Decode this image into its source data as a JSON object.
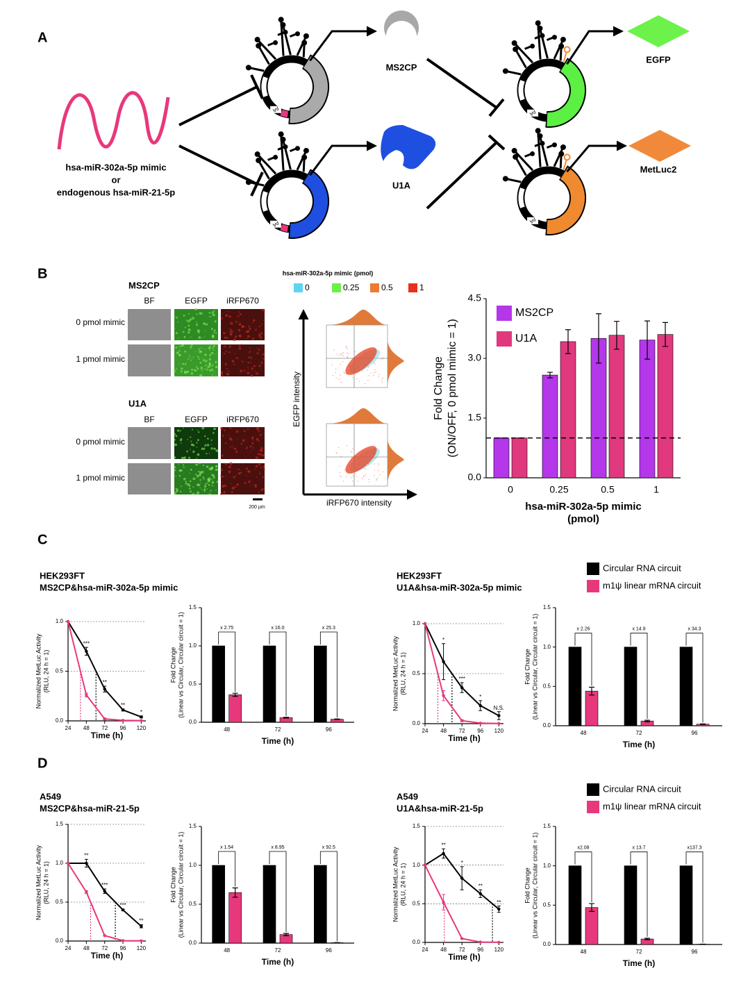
{
  "panel_labels": [
    "A",
    "B",
    "C",
    "D"
  ],
  "diagram": {
    "mirna_label": [
      "hsa-miR-302a-5p mimic",
      "or",
      "endogenous hsa-miR-21-5p"
    ],
    "proteins": [
      "MS2CP",
      "U1A",
      "EGFP",
      "MetLuc2"
    ],
    "pa_label": "pA"
  },
  "microscopy": {
    "groups": [
      "MS2CP",
      "U1A"
    ],
    "channels": [
      "BF",
      "EGFP",
      "iRFP670"
    ],
    "rows": [
      "0 pmol mimic",
      "1 pmol mimic"
    ],
    "scale_bar": "200 µm"
  },
  "flow": {
    "legend_title": "hsa-miR-302a-5p mimic (pmol)",
    "legend": [
      {
        "name": "0",
        "color": "#5fd4f2"
      },
      {
        "name": "0.25",
        "color": "#6cf04a"
      },
      {
        "name": "0.5",
        "color": "#ef7a32"
      },
      {
        "name": "1",
        "color": "#e8301f"
      }
    ],
    "x_label": "iRFP670 intensity",
    "y_label": "EGFP intensity"
  },
  "chart_data": [
    {
      "type": "bar",
      "categories": [
        "0",
        "0.25",
        "0.5",
        "1"
      ],
      "series": [
        {
          "name": "MS2CP",
          "color": "#b437ea",
          "values": [
            1,
            2.58,
            3.5,
            3.46
          ],
          "errors": [
            0,
            0.07,
            0.62,
            0.48
          ]
        },
        {
          "name": "U1A",
          "color": "#e0397d",
          "values": [
            1,
            3.42,
            3.58,
            3.6
          ],
          "errors": [
            0,
            0.3,
            0.35,
            0.3
          ]
        }
      ],
      "ylim": [
        0,
        4.5
      ],
      "yticks": [
        {
          "value": 0,
          "label": "0.0"
        },
        {
          "value": 1.5,
          "label": "1.5"
        },
        {
          "value": 3,
          "label": "3.0"
        },
        {
          "value": 4.5,
          "label": "4.5"
        }
      ],
      "y_label": [
        "Fold Change",
        "(ON/OFF, 0 pmol mimic = 1)"
      ],
      "x_label": [
        "hsa-miR-302a-5p mimic",
        "(pmol)"
      ],
      "reference_line": 1,
      "legend": "upper left"
    },
    {
      "type": "line",
      "title": [
        "HEK293FT",
        "MS2CP&hsa-miR-302a-5p mimic"
      ],
      "x": [
        24,
        48,
        72,
        96,
        120
      ],
      "xlim": [
        24,
        126
      ],
      "xticks": [
        24,
        48,
        72,
        96,
        120
      ],
      "ylim": [
        0,
        1
      ],
      "yticks": [
        {
          "value": 0,
          "label": "0.0"
        },
        {
          "value": 0.5,
          "label": "0.5"
        },
        {
          "value": 1,
          "label": "1.0"
        }
      ],
      "grid": true,
      "threshold": 0.5,
      "y_label": [
        "Normalized MetLuc Activity",
        "(RLU, 24 h = 1)"
      ],
      "x_label": "Time (h)",
      "series": [
        {
          "name": "Circular RNA circuit",
          "color": "#000000",
          "values": [
            1,
            0.7,
            0.32,
            0.11,
            0.04
          ],
          "errors": [
            0,
            0.04,
            0.03,
            0.01,
            0.01
          ],
          "annotations": [
            null,
            "***",
            "**",
            "**",
            "*"
          ]
        },
        {
          "name": "m1ψ linear mRNA circuit",
          "color": "#e8387c",
          "values": [
            1,
            0.26,
            0.02,
            0.005,
            0.003
          ],
          "errors": [
            0,
            0.02,
            0.01,
            0,
            0
          ]
        }
      ]
    },
    {
      "type": "bar",
      "categories": [
        "48",
        "72",
        "96"
      ],
      "series": [
        {
          "name": "Circular RNA circuit",
          "color": "#000000",
          "values": [
            1,
            1,
            1
          ]
        },
        {
          "name": "m1ψ linear mRNA circuit",
          "color": "#e8387c",
          "values": [
            0.36,
            0.06,
            0.04
          ],
          "errors": [
            0.02,
            0.005,
            0.003
          ]
        }
      ],
      "ylim": [
        0,
        1.5
      ],
      "yticks": [
        {
          "value": 0,
          "label": "0.0"
        },
        {
          "value": 0.5,
          "label": "0.5"
        },
        {
          "value": 1,
          "label": "1.0"
        },
        {
          "value": 1.5,
          "label": "1.5"
        }
      ],
      "y_label": [
        "Fold Change",
        "(Linear vs Circular, Circular circuit = 1)"
      ],
      "x_label": "Time (h)",
      "bracket_labels": [
        "x 2.75",
        "x 16.0",
        "x 25.3"
      ]
    },
    {
      "type": "line",
      "title": [
        "HEK293FT",
        "U1A&hsa-miR-302a-5p mimic"
      ],
      "x": [
        24,
        48,
        72,
        96,
        120
      ],
      "xlim": [
        24,
        126
      ],
      "xticks": [
        24,
        48,
        72,
        96,
        120
      ],
      "ylim": [
        0,
        1
      ],
      "yticks": [
        {
          "value": 0,
          "label": "0.0"
        },
        {
          "value": 0.5,
          "label": "0.5"
        },
        {
          "value": 1,
          "label": "1.0"
        }
      ],
      "grid": true,
      "threshold": 0.5,
      "y_label": [
        "Normalized MetLuc Activity",
        "(RLU, 24 h = 1)"
      ],
      "x_label": "Time (h)",
      "series": [
        {
          "name": "Circular RNA circuit",
          "color": "#000000",
          "values": [
            1,
            0.62,
            0.36,
            0.18,
            0.08
          ],
          "errors": [
            0,
            0.18,
            0.05,
            0.05,
            0.04
          ],
          "annotations": [
            null,
            "*",
            "***",
            "*",
            "N.S."
          ]
        },
        {
          "name": "m1ψ linear mRNA circuit",
          "color": "#e8387c",
          "values": [
            1,
            0.28,
            0.03,
            0.005,
            0.002
          ],
          "errors": [
            0,
            0.05,
            0.01,
            0,
            0
          ]
        }
      ]
    },
    {
      "type": "bar",
      "categories": [
        "48",
        "72",
        "96"
      ],
      "series": [
        {
          "name": "Circular RNA circuit",
          "color": "#000000",
          "values": [
            1,
            1,
            1
          ]
        },
        {
          "name": "m1ψ linear mRNA circuit",
          "color": "#e8387c",
          "values": [
            0.44,
            0.06,
            0.02
          ],
          "errors": [
            0.05,
            0.01,
            0.003
          ]
        }
      ],
      "ylim": [
        0,
        1.5
      ],
      "yticks": [
        {
          "value": 0,
          "label": "0.0"
        },
        {
          "value": 0.5,
          "label": "0.5"
        },
        {
          "value": 1,
          "label": "1.0"
        },
        {
          "value": 1.5,
          "label": "1.5"
        }
      ],
      "y_label": [
        "Fold Change",
        "(Linear vs Circular, Circular circuit = 1)"
      ],
      "x_label": "Time (h)",
      "bracket_labels": [
        "x 2.26",
        "x 14.9",
        "x 34.3"
      ],
      "legend": "above"
    },
    {
      "type": "line",
      "title": [
        "A549",
        "MS2CP&hsa-miR-21-5p"
      ],
      "x": [
        24,
        48,
        72,
        96,
        120
      ],
      "xlim": [
        24,
        126
      ],
      "xticks": [
        24,
        48,
        72,
        96,
        120
      ],
      "ylim": [
        0,
        1.5
      ],
      "yticks": [
        {
          "value": 0,
          "label": "0.0"
        },
        {
          "value": 0.5,
          "label": "0.5"
        },
        {
          "value": 1,
          "label": "1.0"
        },
        {
          "value": 1.5,
          "label": "1.5"
        }
      ],
      "grid": true,
      "threshold": 0.5,
      "y_label": [
        "Normalized MetLuc Activity",
        "(RLU, 24 h = 1)"
      ],
      "x_label": "Time (h)",
      "series": [
        {
          "name": "Circular RNA circuit",
          "color": "#000000",
          "values": [
            1,
            1,
            0.64,
            0.4,
            0.19
          ],
          "errors": [
            0,
            0.05,
            0.03,
            0.01,
            0.02
          ],
          "annotations": [
            null,
            "**",
            "***",
            "***",
            "**"
          ]
        },
        {
          "name": "m1ψ linear mRNA circuit",
          "color": "#e8387c",
          "values": [
            1,
            0.63,
            0.07,
            0.005,
            0.003
          ],
          "errors": [
            0,
            0.02,
            0,
            0,
            0
          ]
        }
      ]
    },
    {
      "type": "bar",
      "categories": [
        "48",
        "72",
        "96"
      ],
      "series": [
        {
          "name": "Circular RNA circuit",
          "color": "#000000",
          "values": [
            1,
            1,
            1
          ]
        },
        {
          "name": "m1ψ linear mRNA circuit",
          "color": "#e8387c",
          "values": [
            0.65,
            0.11,
            0.005
          ],
          "errors": [
            0.06,
            0.015,
            0.002
          ]
        }
      ],
      "ylim": [
        0,
        1.5
      ],
      "yticks": [
        {
          "value": 0,
          "label": "0.0"
        },
        {
          "value": 0.5,
          "label": "0.5"
        },
        {
          "value": 1,
          "label": "1.0"
        },
        {
          "value": 1.5,
          "label": "1.5"
        }
      ],
      "y_label": [
        "Fold Change",
        "(Linear vs Circular, Circular circuit = 1)"
      ],
      "x_label": "Time (h)",
      "bracket_labels": [
        "x 1.54",
        "x 8.95",
        "x 92.5"
      ]
    },
    {
      "type": "line",
      "title": [
        "A549",
        "U1A&hsa-miR-21-5p"
      ],
      "x": [
        24,
        48,
        72,
        96,
        120
      ],
      "xlim": [
        24,
        126
      ],
      "xticks": [
        24,
        48,
        72,
        96,
        120
      ],
      "ylim": [
        0,
        1.5
      ],
      "yticks": [
        {
          "value": 0,
          "label": "0.0"
        },
        {
          "value": 0.5,
          "label": "0.5"
        },
        {
          "value": 1,
          "label": "1.0"
        },
        {
          "value": 1.5,
          "label": "1.5"
        }
      ],
      "grid": true,
      "threshold": 0.5,
      "y_label": [
        "Normalized MetLuc Activity",
        "(RLU, 24 h = 1)"
      ],
      "x_label": "Time (h)",
      "series": [
        {
          "name": "Circular RNA circuit",
          "color": "#000000",
          "values": [
            1,
            1.15,
            0.83,
            0.63,
            0.43
          ],
          "errors": [
            0,
            0.06,
            0.15,
            0.05,
            0.04
          ],
          "annotations": [
            null,
            "**",
            "*",
            "**",
            "**"
          ]
        },
        {
          "name": "m1ψ linear mRNA circuit",
          "color": "#e8387c",
          "values": [
            1,
            0.52,
            0.05,
            0.005,
            0.002
          ],
          "errors": [
            0,
            0.1,
            0,
            0,
            0
          ]
        }
      ]
    },
    {
      "type": "bar",
      "categories": [
        "48",
        "72",
        "96"
      ],
      "series": [
        {
          "name": "Circular RNA circuit",
          "color": "#000000",
          "values": [
            1,
            1,
            1
          ]
        },
        {
          "name": "m1ψ linear mRNA circuit",
          "color": "#e8387c",
          "values": [
            0.47,
            0.07,
            0.003
          ],
          "errors": [
            0.05,
            0.01,
            0.002
          ]
        }
      ],
      "ylim": [
        0,
        1.5
      ],
      "yticks": [
        {
          "value": 0,
          "label": "0.0"
        },
        {
          "value": 0.5,
          "label": "0.5"
        },
        {
          "value": 1,
          "label": "1.0"
        },
        {
          "value": 1.5,
          "label": "1.5"
        }
      ],
      "y_label": [
        "Fold Change",
        "(Linear vs Circular, Circular circuit = 1)"
      ],
      "x_label": "Time (h)",
      "bracket_labels": [
        "x2.08",
        "x 13.7",
        "x137.3"
      ],
      "legend": "above"
    }
  ]
}
